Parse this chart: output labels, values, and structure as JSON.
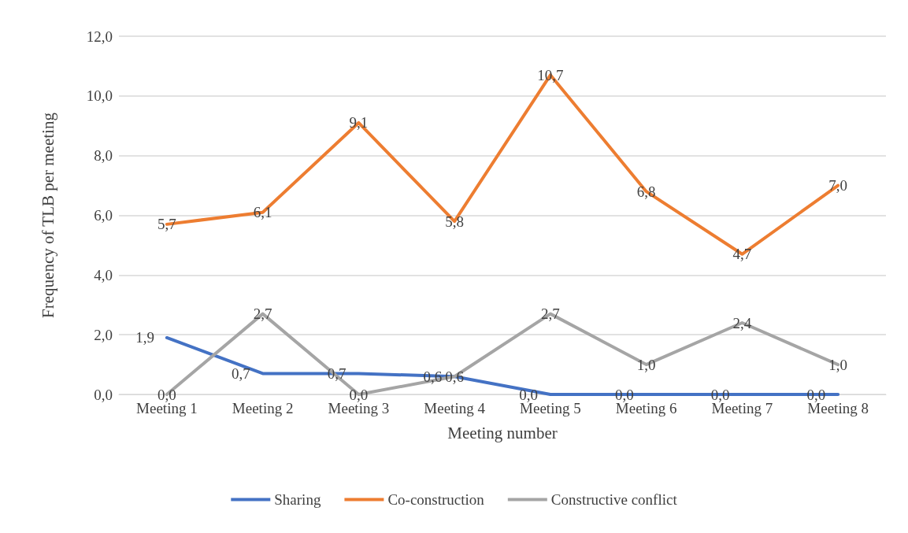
{
  "chart_data": {
    "type": "line",
    "xlabel": "Meeting number",
    "ylabel": "Frequency of TLB per meeting",
    "categories": [
      "Meeting 1",
      "Meeting 2",
      "Meeting 3",
      "Meeting 4",
      "Meeting 5",
      "Meeting 6",
      "Meeting 7",
      "Meeting 8"
    ],
    "series": [
      {
        "name": "Sharing",
        "color": "#4472c4",
        "values": [
          1.9,
          0.7,
          0.7,
          0.6,
          0,
          0,
          0,
          0
        ],
        "value_labels": [
          "1,9",
          "0,7",
          "0,7",
          "0,6",
          "0,0",
          "0,0",
          "0,0",
          "0,0"
        ]
      },
      {
        "name": "Co-construction",
        "color": "#ed7d31",
        "values": [
          5.7,
          6.1,
          9.1,
          5.8,
          10.7,
          6.8,
          4.7,
          7.0
        ],
        "value_labels": [
          "5,7",
          "6,1",
          "9,1",
          "5,8",
          "10,7",
          "6,8",
          "4,7",
          "7,0"
        ]
      },
      {
        "name": "Constructive conflict",
        "color": "#a5a5a5",
        "values": [
          0,
          2.7,
          0,
          0.6,
          2.7,
          1.0,
          2.4,
          1.0
        ],
        "value_labels": [
          "0,0",
          "2,7",
          "0,0",
          "0,6",
          "2,7",
          "1,0",
          "2,4",
          "1,0"
        ]
      }
    ],
    "ylim": [
      0,
      12
    ],
    "yticks": [
      {
        "value": 0,
        "label": "0,0"
      },
      {
        "value": 2,
        "label": "2,0"
      },
      {
        "value": 4,
        "label": "4,0"
      },
      {
        "value": 6,
        "label": "6,0"
      },
      {
        "value": 8,
        "label": "8,0"
      },
      {
        "value": 10,
        "label": "10,0"
      },
      {
        "value": 12,
        "label": "12,0"
      }
    ],
    "grid": "y",
    "legend": "bottom",
    "marker": "none",
    "line_style": "solid"
  }
}
